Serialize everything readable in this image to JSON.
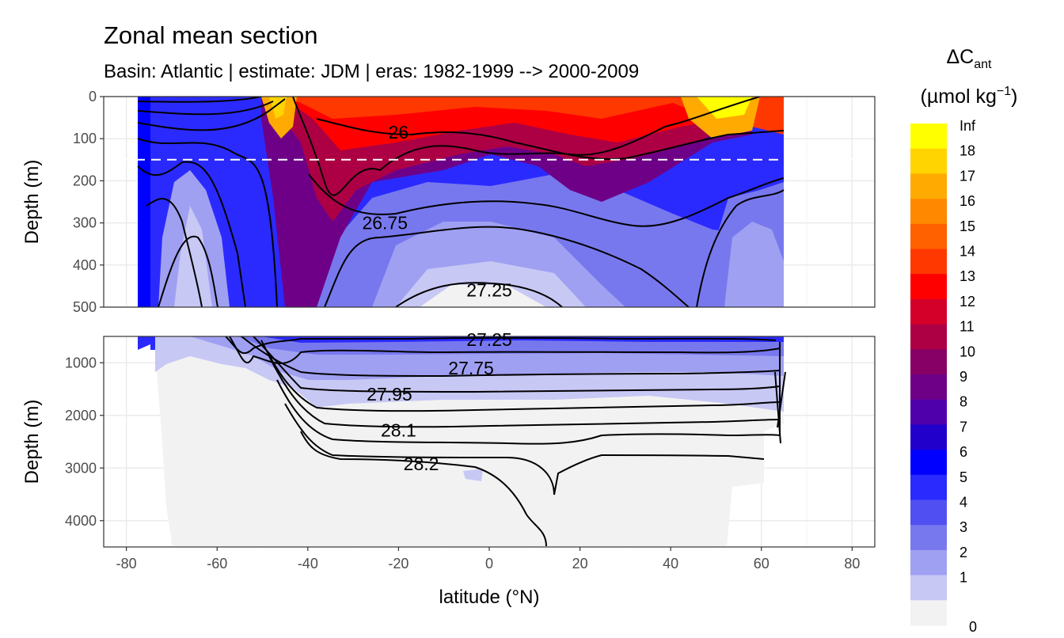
{
  "title": "Zonal mean section",
  "subtitle": "Basin: Atlantic | estimate: JDM  | eras: 1982-1999 --> 2000-2009",
  "chart_data": {
    "type": "heatmap",
    "title": "Zonal mean section",
    "subtitle": "Basin: Atlantic | estimate: JDM  | eras: 1982-1999 --> 2000-2009",
    "xlabel": "latitude (°N)",
    "ylabel_top": "Depth (m)",
    "ylabel_bottom": "Depth (m)",
    "xlim": [
      -85,
      85
    ],
    "x_ticks": [
      "-80",
      "-60",
      "-40",
      "-20",
      "0",
      "20",
      "40",
      "60",
      "80"
    ],
    "panels": [
      {
        "name": "upper",
        "ylim": [
          500,
          0
        ],
        "y_ticks": [
          "0",
          "100",
          "200",
          "300",
          "400",
          "500"
        ]
      },
      {
        "name": "lower",
        "ylim": [
          4500,
          500
        ],
        "y_ticks": [
          "1000",
          "2000",
          "3000",
          "4000"
        ]
      }
    ],
    "reference_line_depth": 150,
    "legend": {
      "title_main": "ΔC",
      "title_sub": "ant",
      "unit_pre": "(µmol kg",
      "unit_sup": "−1",
      "unit_post": ")",
      "labels": [
        "Inf",
        "18",
        "17",
        "16",
        "15",
        "14",
        "13",
        "12",
        "11",
        "10",
        "9",
        "8",
        "7",
        "6",
        "5",
        "4",
        "3",
        "2",
        "1",
        "0"
      ],
      "colors": [
        "#ffff00",
        "#ffd400",
        "#ffaa00",
        "#ff8800",
        "#ff6000",
        "#ff3800",
        "#ff0000",
        "#d4002a",
        "#ad0044",
        "#860066",
        "#6e0088",
        "#5000aa",
        "#2200cc",
        "#0000ff",
        "#2a2aff",
        "#5050f2",
        "#7878ee",
        "#a0a0f2",
        "#c8c8f5",
        "#f2f2f2"
      ]
    },
    "contour_labels": [
      {
        "text": "26",
        "lat": -20,
        "depth": 85
      },
      {
        "text": "26.75",
        "lat": -23,
        "depth": 300
      },
      {
        "text": "27.25",
        "lat": 0,
        "depth": 460
      },
      {
        "text": "27.25",
        "lat": 0,
        "depth": 560
      },
      {
        "text": "27.75",
        "lat": -4,
        "depth": 1100
      },
      {
        "text": "27.95",
        "lat": -22,
        "depth": 1600
      },
      {
        "text": "28.1",
        "lat": -20,
        "depth": 2280
      },
      {
        "text": "28.2",
        "lat": -15,
        "depth": 2920
      }
    ]
  }
}
